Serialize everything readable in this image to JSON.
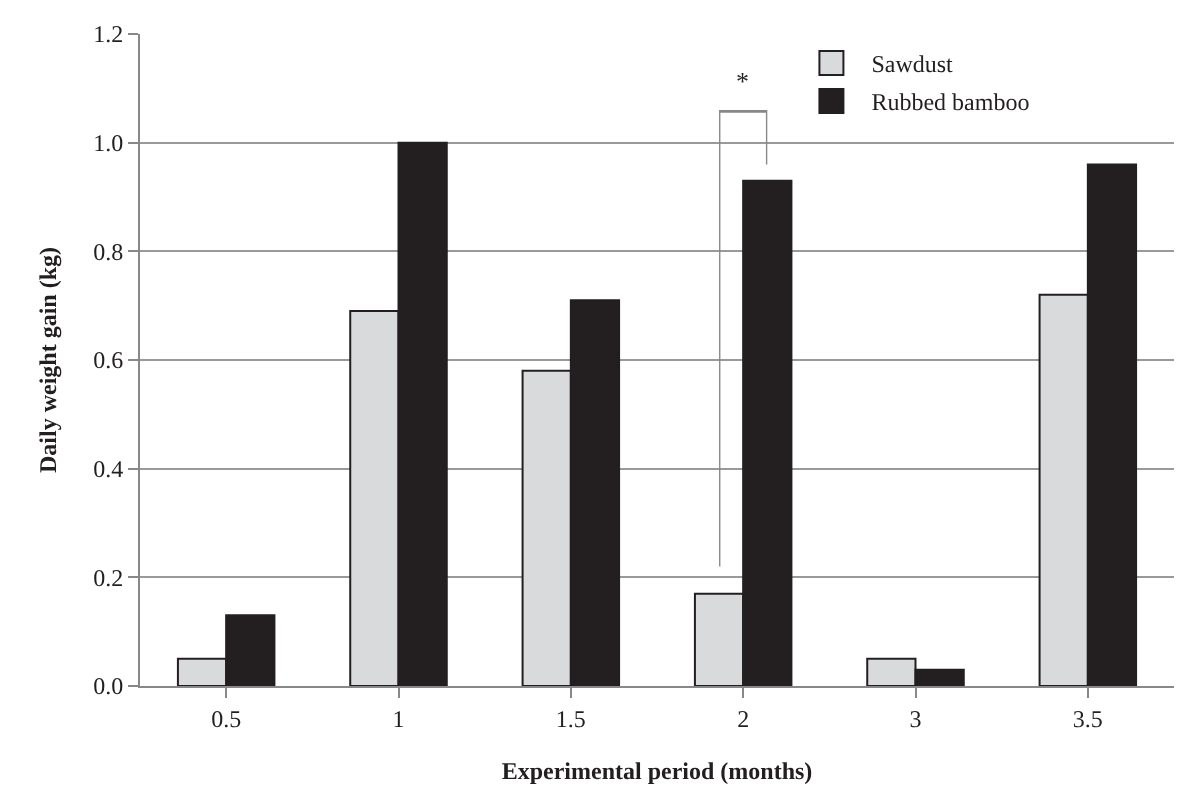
{
  "chart_data": {
    "type": "bar",
    "xlabel": "Experimental period (months)",
    "ylabel": "Daily weight gain (kg)",
    "categories": [
      "0.5",
      "1",
      "1.5",
      "2",
      "3",
      "3.5"
    ],
    "series": [
      {
        "name": "Sawdust",
        "color": "#d9dadb",
        "values": [
          0.05,
          0.69,
          0.58,
          0.17,
          0.05,
          0.72
        ]
      },
      {
        "name": "Rubbed bamboo",
        "color": "#231f20",
        "values": [
          0.13,
          1.0,
          0.71,
          0.93,
          0.03,
          0.96
        ]
      }
    ],
    "ylim": [
      0,
      1.2
    ],
    "yticks": [
      {
        "value": 0,
        "label": "0.0"
      },
      {
        "value": 0.2,
        "label": "0.2"
      },
      {
        "value": 0.4,
        "label": "0.4"
      },
      {
        "value": 0.6,
        "label": "0.6"
      },
      {
        "value": 0.8,
        "label": "0.8"
      },
      {
        "value": 1.0,
        "label": "1.0"
      },
      {
        "value": 1.2,
        "label": "1.2"
      }
    ],
    "grid": "y",
    "legend": "top right",
    "annotations": [
      "*"
    ]
  }
}
